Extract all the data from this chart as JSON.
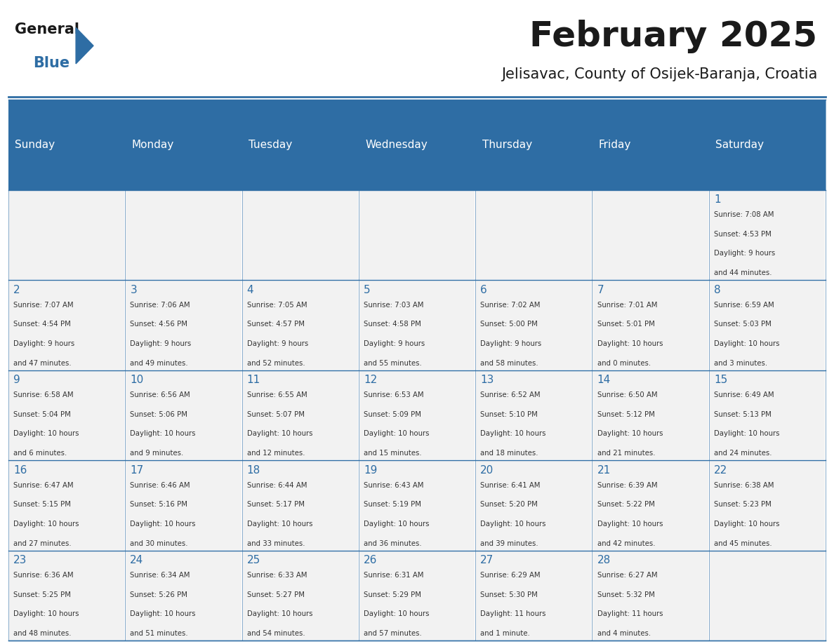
{
  "title": "February 2025",
  "subtitle": "Jelisavac, County of Osijek-Baranja, Croatia",
  "days_of_week": [
    "Sunday",
    "Monday",
    "Tuesday",
    "Wednesday",
    "Thursday",
    "Friday",
    "Saturday"
  ],
  "header_bg": "#2E6DA4",
  "header_text": "#FFFFFF",
  "cell_bg": "#F2F2F2",
  "border_color": "#2E6DA4",
  "day_num_color": "#2E6DA4",
  "text_color": "#333333",
  "calendar": [
    [
      {
        "day": null,
        "info": ""
      },
      {
        "day": null,
        "info": ""
      },
      {
        "day": null,
        "info": ""
      },
      {
        "day": null,
        "info": ""
      },
      {
        "day": null,
        "info": ""
      },
      {
        "day": null,
        "info": ""
      },
      {
        "day": 1,
        "info": "Sunrise: 7:08 AM\nSunset: 4:53 PM\nDaylight: 9 hours\nand 44 minutes."
      }
    ],
    [
      {
        "day": 2,
        "info": "Sunrise: 7:07 AM\nSunset: 4:54 PM\nDaylight: 9 hours\nand 47 minutes."
      },
      {
        "day": 3,
        "info": "Sunrise: 7:06 AM\nSunset: 4:56 PM\nDaylight: 9 hours\nand 49 minutes."
      },
      {
        "day": 4,
        "info": "Sunrise: 7:05 AM\nSunset: 4:57 PM\nDaylight: 9 hours\nand 52 minutes."
      },
      {
        "day": 5,
        "info": "Sunrise: 7:03 AM\nSunset: 4:58 PM\nDaylight: 9 hours\nand 55 minutes."
      },
      {
        "day": 6,
        "info": "Sunrise: 7:02 AM\nSunset: 5:00 PM\nDaylight: 9 hours\nand 58 minutes."
      },
      {
        "day": 7,
        "info": "Sunrise: 7:01 AM\nSunset: 5:01 PM\nDaylight: 10 hours\nand 0 minutes."
      },
      {
        "day": 8,
        "info": "Sunrise: 6:59 AM\nSunset: 5:03 PM\nDaylight: 10 hours\nand 3 minutes."
      }
    ],
    [
      {
        "day": 9,
        "info": "Sunrise: 6:58 AM\nSunset: 5:04 PM\nDaylight: 10 hours\nand 6 minutes."
      },
      {
        "day": 10,
        "info": "Sunrise: 6:56 AM\nSunset: 5:06 PM\nDaylight: 10 hours\nand 9 minutes."
      },
      {
        "day": 11,
        "info": "Sunrise: 6:55 AM\nSunset: 5:07 PM\nDaylight: 10 hours\nand 12 minutes."
      },
      {
        "day": 12,
        "info": "Sunrise: 6:53 AM\nSunset: 5:09 PM\nDaylight: 10 hours\nand 15 minutes."
      },
      {
        "day": 13,
        "info": "Sunrise: 6:52 AM\nSunset: 5:10 PM\nDaylight: 10 hours\nand 18 minutes."
      },
      {
        "day": 14,
        "info": "Sunrise: 6:50 AM\nSunset: 5:12 PM\nDaylight: 10 hours\nand 21 minutes."
      },
      {
        "day": 15,
        "info": "Sunrise: 6:49 AM\nSunset: 5:13 PM\nDaylight: 10 hours\nand 24 minutes."
      }
    ],
    [
      {
        "day": 16,
        "info": "Sunrise: 6:47 AM\nSunset: 5:15 PM\nDaylight: 10 hours\nand 27 minutes."
      },
      {
        "day": 17,
        "info": "Sunrise: 6:46 AM\nSunset: 5:16 PM\nDaylight: 10 hours\nand 30 minutes."
      },
      {
        "day": 18,
        "info": "Sunrise: 6:44 AM\nSunset: 5:17 PM\nDaylight: 10 hours\nand 33 minutes."
      },
      {
        "day": 19,
        "info": "Sunrise: 6:43 AM\nSunset: 5:19 PM\nDaylight: 10 hours\nand 36 minutes."
      },
      {
        "day": 20,
        "info": "Sunrise: 6:41 AM\nSunset: 5:20 PM\nDaylight: 10 hours\nand 39 minutes."
      },
      {
        "day": 21,
        "info": "Sunrise: 6:39 AM\nSunset: 5:22 PM\nDaylight: 10 hours\nand 42 minutes."
      },
      {
        "day": 22,
        "info": "Sunrise: 6:38 AM\nSunset: 5:23 PM\nDaylight: 10 hours\nand 45 minutes."
      }
    ],
    [
      {
        "day": 23,
        "info": "Sunrise: 6:36 AM\nSunset: 5:25 PM\nDaylight: 10 hours\nand 48 minutes."
      },
      {
        "day": 24,
        "info": "Sunrise: 6:34 AM\nSunset: 5:26 PM\nDaylight: 10 hours\nand 51 minutes."
      },
      {
        "day": 25,
        "info": "Sunrise: 6:33 AM\nSunset: 5:27 PM\nDaylight: 10 hours\nand 54 minutes."
      },
      {
        "day": 26,
        "info": "Sunrise: 6:31 AM\nSunset: 5:29 PM\nDaylight: 10 hours\nand 57 minutes."
      },
      {
        "day": 27,
        "info": "Sunrise: 6:29 AM\nSunset: 5:30 PM\nDaylight: 11 hours\nand 1 minute."
      },
      {
        "day": 28,
        "info": "Sunrise: 6:27 AM\nSunset: 5:32 PM\nDaylight: 11 hours\nand 4 minutes."
      },
      {
        "day": null,
        "info": ""
      }
    ]
  ],
  "logo_text1": "General",
  "logo_text2": "Blue",
  "logo_color1": "#1a1a1a",
  "logo_color2": "#2E6DA4",
  "logo_triangle_color": "#2E6DA4"
}
